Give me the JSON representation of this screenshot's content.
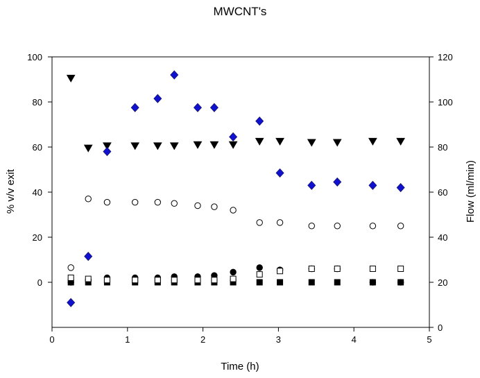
{
  "chart_data": {
    "type": "scatter",
    "title": "MWCNT's",
    "xlabel": "Time (h)",
    "ylabel": "% v/v exit",
    "y2label": "Flow (ml/min)",
    "xlim": [
      0,
      5
    ],
    "ylim": [
      -20,
      100
    ],
    "y2lim": [
      0,
      120
    ],
    "x_ticks": [
      0,
      1,
      2,
      3,
      4,
      5
    ],
    "y_ticks": [
      0,
      20,
      40,
      60,
      80,
      100
    ],
    "y2_ticks": [
      0,
      20,
      40,
      60,
      80,
      100,
      120
    ],
    "grid": false,
    "legend": "none",
    "colors": {
      "flow": "#1010d0",
      "black": "#000000"
    },
    "series": [
      {
        "marker": "triangle-down",
        "fill": "filled",
        "axis": "left",
        "x": [
          0.25,
          0.48,
          0.73,
          1.1,
          1.4,
          1.62,
          1.93,
          2.15,
          2.4,
          2.75,
          3.02,
          3.44,
          3.78,
          4.25,
          4.62
        ],
        "y": [
          90.5,
          59.5,
          60.5,
          60.5,
          60.5,
          60.5,
          61,
          61,
          61,
          62.5,
          62.5,
          62,
          62,
          62.5,
          62.5
        ]
      },
      {
        "marker": "diamond",
        "fill": "blue",
        "axis": "right",
        "x": [
          0.25,
          0.48,
          0.73,
          1.1,
          1.4,
          1.62,
          1.93,
          2.15,
          2.4,
          2.75,
          3.02,
          3.44,
          3.78,
          4.25,
          4.62
        ],
        "y": [
          11,
          31.5,
          78,
          97.5,
          101.5,
          112,
          97.5,
          97.5,
          84.5,
          91.5,
          68.5,
          63,
          64.5,
          63,
          62
        ]
      },
      {
        "marker": "circle",
        "fill": "open",
        "axis": "left",
        "x": [
          0.25,
          0.48,
          0.73,
          1.1,
          1.4,
          1.62,
          1.93,
          2.15,
          2.4,
          2.75,
          3.02,
          3.44,
          3.78,
          4.25,
          4.62
        ],
        "y": [
          6.5,
          37,
          35.5,
          35.5,
          35.5,
          35,
          34,
          33.5,
          32,
          26.5,
          26.5,
          25,
          25,
          25,
          25
        ]
      },
      {
        "marker": "circle",
        "fill": "filled",
        "axis": "left",
        "x": [
          0.25,
          0.48,
          0.73,
          1.1,
          1.4,
          1.62,
          1.93,
          2.15,
          2.4,
          2.75,
          3.02,
          3.44,
          3.78,
          4.25,
          4.62
        ],
        "y": [
          0,
          1,
          2,
          2,
          2,
          2.5,
          2.5,
          3,
          4.5,
          6.5,
          5.5,
          6,
          6,
          0,
          0
        ]
      },
      {
        "marker": "square",
        "fill": "open",
        "axis": "left",
        "x": [
          0.25,
          0.48,
          0.73,
          1.1,
          1.4,
          1.62,
          1.93,
          2.15,
          2.4,
          2.75,
          3.02,
          3.44,
          3.78,
          4.25,
          4.62
        ],
        "y": [
          2,
          1.5,
          1,
          1,
          1,
          1,
          1,
          1,
          1.5,
          3.5,
          5,
          6,
          6,
          6,
          6
        ]
      },
      {
        "marker": "square",
        "fill": "filled",
        "axis": "left",
        "x": [
          0.25,
          0.48,
          0.73,
          1.1,
          1.4,
          1.62,
          1.93,
          2.15,
          2.4,
          2.75,
          3.02,
          3.44,
          3.78,
          4.25,
          4.62
        ],
        "y": [
          0,
          0,
          0,
          0,
          0,
          0,
          0,
          0,
          0,
          0,
          0,
          0,
          0,
          0,
          0
        ]
      }
    ]
  }
}
